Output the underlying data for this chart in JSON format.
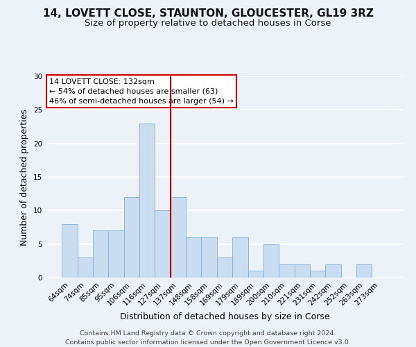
{
  "title": "14, LOVETT CLOSE, STAUNTON, GLOUCESTER, GL19 3RZ",
  "subtitle": "Size of property relative to detached houses in Corse",
  "xlabel": "Distribution of detached houses by size in Corse",
  "ylabel": "Number of detached properties",
  "bar_labels": [
    "64sqm",
    "74sqm",
    "85sqm",
    "95sqm",
    "106sqm",
    "116sqm",
    "127sqm",
    "137sqm",
    "148sqm",
    "158sqm",
    "169sqm",
    "179sqm",
    "189sqm",
    "200sqm",
    "210sqm",
    "221sqm",
    "231sqm",
    "242sqm",
    "252sqm",
    "263sqm",
    "273sqm"
  ],
  "bar_heights": [
    8,
    3,
    7,
    7,
    12,
    23,
    10,
    12,
    6,
    6,
    3,
    6,
    1,
    5,
    2,
    2,
    1,
    2,
    0,
    2,
    0
  ],
  "bar_color": "#c9dcf0",
  "bar_edge_color": "#8db4d8",
  "vline_x": 6.5,
  "vline_color": "#cc0000",
  "annotation_title": "14 LOVETT CLOSE: 132sqm",
  "annotation_line1": "← 54% of detached houses are smaller (63)",
  "annotation_line2": "46% of semi-detached houses are larger (54) →",
  "annotation_box_color": "#ffffff",
  "annotation_box_edge": "#cc0000",
  "ylim": [
    0,
    30
  ],
  "yticks": [
    0,
    5,
    10,
    15,
    20,
    25,
    30
  ],
  "footer1": "Contains HM Land Registry data © Crown copyright and database right 2024.",
  "footer2": "Contains public sector information licensed under the Open Government Licence v3.0.",
  "background_color": "#edf2f9",
  "title_fontsize": 11,
  "subtitle_fontsize": 9.5,
  "axis_label_fontsize": 9,
  "tick_fontsize": 7.5,
  "footer_fontsize": 6.8
}
